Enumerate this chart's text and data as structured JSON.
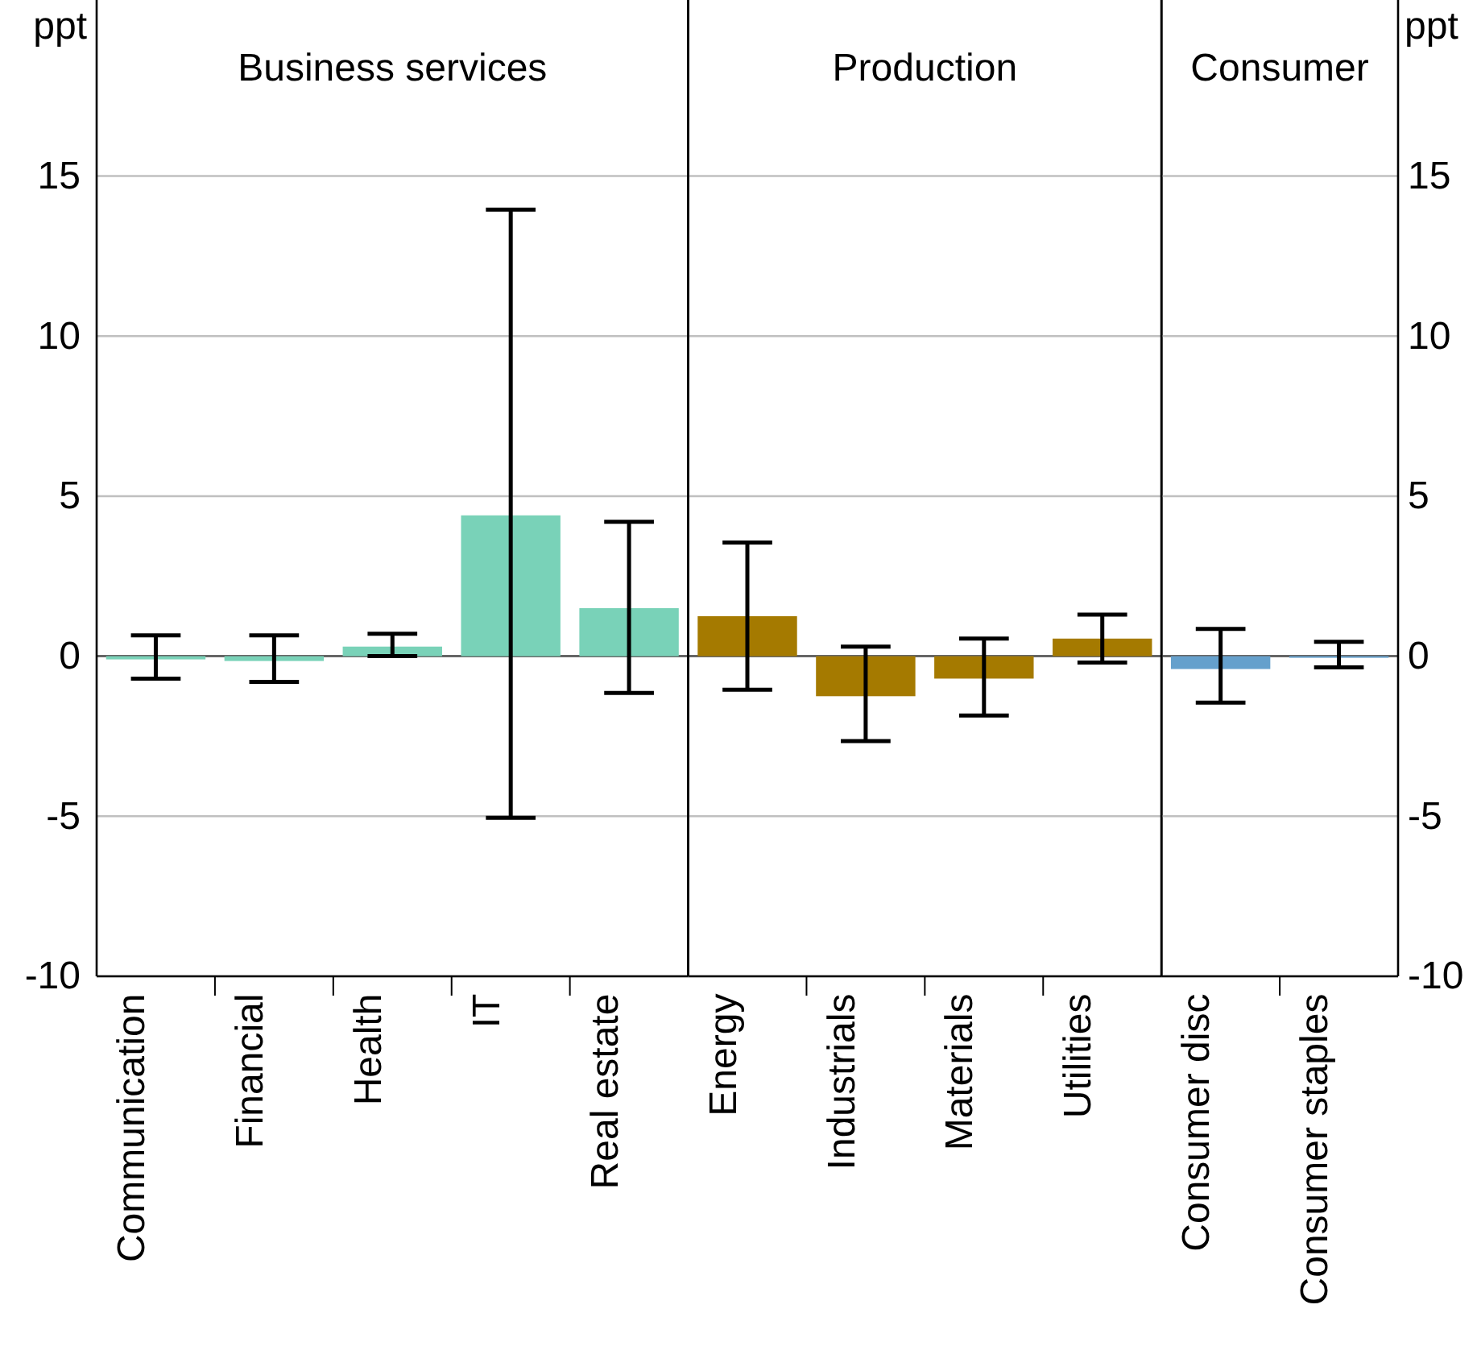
{
  "chart_data": [
    {
      "type": "bar",
      "title": "Business services",
      "ylabel": "ppt",
      "categories": [
        "Communication",
        "Financial",
        "Health",
        "IT",
        "Real estate"
      ],
      "series": [
        {
          "color": "#79d2b8",
          "values": [
            -0.1,
            -0.15,
            0.3,
            4.4,
            1.5
          ],
          "errors": [
            [
              -0.7,
              0.65
            ],
            [
              -0.8,
              0.65
            ],
            [
              0,
              0.7
            ],
            [
              -5.05,
              13.95
            ],
            [
              -1.15,
              4.2
            ]
          ]
        }
      ],
      "ylim": [
        -10,
        20.5
      ],
      "yticks": [
        -10,
        -5,
        0,
        5,
        10,
        15
      ],
      "grid": "y"
    },
    {
      "type": "bar",
      "title": "Production",
      "categories": [
        "Energy",
        "Industrials",
        "Materials",
        "Utilities"
      ],
      "series": [
        {
          "color": "#a57a00",
          "values": [
            1.25,
            -1.25,
            -0.7,
            0.55
          ],
          "errors": [
            [
              -1.05,
              3.55
            ],
            [
              -2.65,
              0.3
            ],
            [
              -1.85,
              0.55
            ],
            [
              -0.2,
              1.3
            ]
          ]
        }
      ],
      "ylim": [
        -10,
        20.5
      ],
      "yticks": [
        -10,
        -5,
        0,
        5,
        10,
        15
      ],
      "grid": "y",
      "tick_labels": "x"
    },
    {
      "type": "bar",
      "title": "Consumer",
      "y2label": "ppt",
      "categories": [
        "Consumer disc",
        "Consumer staples"
      ],
      "series": [
        {
          "color": "#65a0cc",
          "axis": "y2",
          "values": [
            -0.4,
            -0.05
          ],
          "errors": [
            [
              -1.45,
              0.85
            ],
            [
              -0.35,
              0.45
            ]
          ]
        }
      ],
      "y2lim": [
        -10,
        20.5
      ],
      "y2ticks": [
        -10,
        -5,
        0,
        5,
        10,
        15
      ],
      "grid": "y"
    }
  ]
}
